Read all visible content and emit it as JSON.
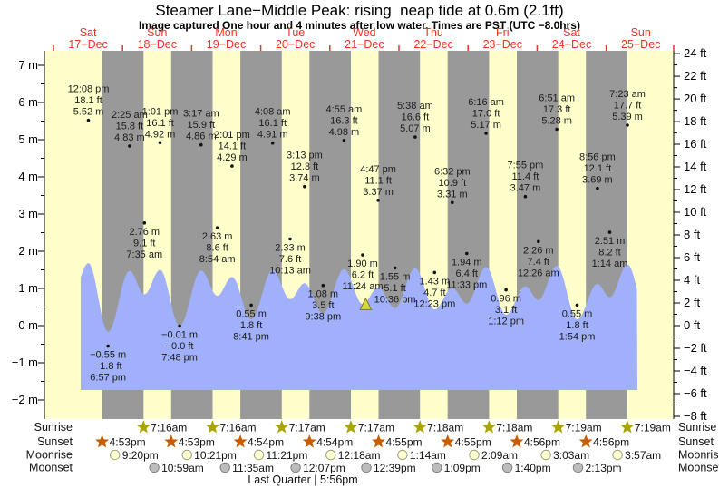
{
  "title": "Steamer Lane−Middle Peak: rising  neap tide at 0.6m (2.1ft)",
  "subtitle": "Image captured One hour and 4 minutes after low water. Times are PST (UTC −8.0hrs)",
  "footer": "Last Quarter | 5:56pm",
  "colors": {
    "day_band": "#ffffcc",
    "night_band": "#999999",
    "tide_fill": "#a0b0fa",
    "red_label": "#ee3322",
    "annotation": "#1b1b1b",
    "axis": "#000000",
    "sunrise_star": "#a8a400",
    "sunset_star": "#c85c00",
    "moonrise_fill": "#ffffd2",
    "moonrise_stroke": "#a0a080",
    "moonset_fill": "#bcbcbc",
    "moonset_stroke": "#808080",
    "marker_fill": "#d8d845",
    "marker_stroke": "#7a7a20"
  },
  "days": [
    {
      "name": "Sat",
      "date": "17−Dec"
    },
    {
      "name": "Sun",
      "date": "18−Dec"
    },
    {
      "name": "Mon",
      "date": "19−Dec"
    },
    {
      "name": "Tue",
      "date": "20−Dec"
    },
    {
      "name": "Wed",
      "date": "21−Dec"
    },
    {
      "name": "Thu",
      "date": "22−Dec"
    },
    {
      "name": "Fri",
      "date": "23−Dec"
    },
    {
      "name": "Sat",
      "date": "24−Dec"
    },
    {
      "name": "Sun",
      "date": "25−Dec"
    }
  ],
  "y_axis_left": {
    "unit": "m",
    "labels": [
      {
        "value": 7,
        "text": "7 m"
      },
      {
        "value": 6,
        "text": "6 m"
      },
      {
        "value": 5,
        "text": "5 m"
      },
      {
        "value": 4,
        "text": "4 m"
      },
      {
        "value": 3,
        "text": "3 m"
      },
      {
        "value": 2,
        "text": "2 m"
      },
      {
        "value": 1,
        "text": "1 m"
      },
      {
        "value": 0,
        "text": "0 m"
      },
      {
        "value": -1,
        "text": "−1 m"
      },
      {
        "value": -2,
        "text": "−2 m"
      }
    ]
  },
  "y_axis_right": {
    "unit": "ft",
    "labels": [
      {
        "value": 24,
        "text": "24 ft"
      },
      {
        "value": 22,
        "text": "22 ft"
      },
      {
        "value": 20,
        "text": "20 ft"
      },
      {
        "value": 18,
        "text": "18 ft"
      },
      {
        "value": 16,
        "text": "16 ft"
      },
      {
        "value": 14,
        "text": "14 ft"
      },
      {
        "value": 12,
        "text": "12 ft"
      },
      {
        "value": 10,
        "text": "10 ft"
      },
      {
        "value": 8,
        "text": "8 ft"
      },
      {
        "value": 6,
        "text": "6 ft"
      },
      {
        "value": 4,
        "text": "4 ft"
      },
      {
        "value": 2,
        "text": "2 ft"
      },
      {
        "value": 0,
        "text": "0 ft"
      },
      {
        "value": -2,
        "text": "−2 ft"
      },
      {
        "value": -4,
        "text": "−4 ft"
      },
      {
        "value": -6,
        "text": "−6 ft"
      },
      {
        "value": -8,
        "text": "−8 ft"
      }
    ]
  },
  "chart_data": {
    "type": "area",
    "description": "Tide curve with labeled high/low tide events; yellow day bands and gray night bands",
    "x_range_days": 9,
    "ylim_m": [
      -2.5,
      7.4
    ],
    "tide_events": [
      {
        "day": 0,
        "hour": 12.133,
        "type": "high",
        "time": "12:08 pm",
        "ft": "18.1 ft",
        "m": "5.52 m",
        "value_m": 5.52
      },
      {
        "day": 0,
        "hour": 18.95,
        "type": "low",
        "time": "6:57 pm",
        "ft": "−1.8 ft",
        "m": "−0.55 m",
        "value_m": -0.55
      },
      {
        "day": 1,
        "hour": 2.417,
        "type": "high",
        "time": "2:25 am",
        "ft": "15.8 ft",
        "m": "4.83 m",
        "value_m": 4.83
      },
      {
        "day": 1,
        "hour": 7.583,
        "type": "low",
        "time": "7:35 am",
        "ft": "9.1 ft",
        "m": "2.76 m",
        "value_m": 2.76
      },
      {
        "day": 1,
        "hour": 13.017,
        "type": "high",
        "time": "1:01 pm",
        "ft": "16.1 ft",
        "m": "4.92 m",
        "value_m": 4.92
      },
      {
        "day": 1,
        "hour": 19.8,
        "type": "low",
        "time": "7:48 pm",
        "ft": "−0.0 ft",
        "m": "−0.01 m",
        "value_m": -0.01
      },
      {
        "day": 2,
        "hour": 3.283,
        "type": "high",
        "time": "3:17 am",
        "ft": "15.9 ft",
        "m": "4.86 m",
        "value_m": 4.86
      },
      {
        "day": 2,
        "hour": 8.9,
        "type": "low",
        "time": "8:54 am",
        "ft": "8.6 ft",
        "m": "2.63 m",
        "value_m": 2.63
      },
      {
        "day": 2,
        "hour": 14.017,
        "type": "high",
        "time": "2:01 pm",
        "ft": "14.1 ft",
        "m": "4.29 m",
        "value_m": 4.29
      },
      {
        "day": 2,
        "hour": 20.683,
        "type": "low",
        "time": "8:41 pm",
        "ft": "1.8 ft",
        "m": "0.55 m",
        "value_m": 0.55
      },
      {
        "day": 3,
        "hour": 4.133,
        "type": "high",
        "time": "4:08 am",
        "ft": "16.1 ft",
        "m": "4.91 m",
        "value_m": 4.91
      },
      {
        "day": 3,
        "hour": 10.217,
        "type": "low",
        "time": "10:13 am",
        "ft": "7.6 ft",
        "m": "2.33 m",
        "value_m": 2.33
      },
      {
        "day": 3,
        "hour": 15.217,
        "type": "high",
        "time": "3:13 pm",
        "ft": "12.3 ft",
        "m": "3.74 m",
        "value_m": 3.74
      },
      {
        "day": 3,
        "hour": 21.633,
        "type": "low",
        "time": "9:38 pm",
        "ft": "3.5 ft",
        "m": "1.08 m",
        "value_m": 1.08
      },
      {
        "day": 4,
        "hour": 4.917,
        "type": "high",
        "time": "4:55 am",
        "ft": "16.3 ft",
        "m": "4.98 m",
        "value_m": 4.98
      },
      {
        "day": 4,
        "hour": 11.4,
        "type": "low",
        "time": "11:24 am",
        "ft": "6.2 ft",
        "m": "1.90 m",
        "value_m": 1.9
      },
      {
        "day": 4,
        "hour": 16.783,
        "type": "high",
        "time": "4:47 pm",
        "ft": "11.1 ft",
        "m": "3.37 m",
        "value_m": 3.37
      },
      {
        "day": 4,
        "hour": 22.6,
        "type": "low",
        "time": "10:36 pm",
        "ft": "5.1 ft",
        "m": "1.55 m",
        "value_m": 1.55
      },
      {
        "day": 5,
        "hour": 5.633,
        "type": "high",
        "time": "5:38 am",
        "ft": "16.6 ft",
        "m": "5.07 m",
        "value_m": 5.07
      },
      {
        "day": 5,
        "hour": 12.383,
        "type": "low",
        "time": "12:23 pm",
        "ft": "4.7 ft",
        "m": "1.43 m",
        "value_m": 1.43
      },
      {
        "day": 5,
        "hour": 18.533,
        "type": "high",
        "time": "6:32 pm",
        "ft": "10.9 ft",
        "m": "3.31 m",
        "value_m": 3.31
      },
      {
        "day": 5,
        "hour": 23.55,
        "type": "low",
        "time": "11:33 pm",
        "ft": "6.4 ft",
        "m": "1.94 m",
        "value_m": 1.94
      },
      {
        "day": 6,
        "hour": 6.267,
        "type": "high",
        "time": "6:16 am",
        "ft": "17.0 ft",
        "m": "5.17 m",
        "value_m": 5.17
      },
      {
        "day": 6,
        "hour": 13.2,
        "type": "low",
        "time": "1:12 pm",
        "ft": "3.1 ft",
        "m": "0.96 m",
        "value_m": 0.96
      },
      {
        "day": 6,
        "hour": 19.917,
        "type": "high",
        "time": "7:55 pm",
        "ft": "11.4 ft",
        "m": "3.47 m",
        "value_m": 3.47
      },
      {
        "day": 7,
        "hour": 0.433,
        "type": "low",
        "time": "12:26 am",
        "ft": "7.4 ft",
        "m": "2.26 m",
        "value_m": 2.26
      },
      {
        "day": 7,
        "hour": 6.85,
        "type": "high",
        "time": "6:51 am",
        "ft": "17.3 ft",
        "m": "5.28 m",
        "value_m": 5.28
      },
      {
        "day": 7,
        "hour": 13.9,
        "type": "low",
        "time": "1:54 pm",
        "ft": "1.8 ft",
        "m": "0.55 m",
        "value_m": 0.55
      },
      {
        "day": 7,
        "hour": 20.933,
        "type": "high",
        "time": "8:56 pm",
        "ft": "12.1 ft",
        "m": "3.69 m",
        "value_m": 3.69
      },
      {
        "day": 8,
        "hour": 1.233,
        "type": "low",
        "time": "1:14 am",
        "ft": "8.2 ft",
        "m": "2.51 m",
        "value_m": 2.51
      },
      {
        "day": 8,
        "hour": 7.383,
        "type": "high",
        "time": "7:23 am",
        "ft": "17.7 ft",
        "m": "5.39 m",
        "value_m": 5.39
      }
    ],
    "curve_padding": [
      {
        "day": 0,
        "hour": 6.2,
        "value_m": 2.5
      },
      {
        "day": 8,
        "hour": 13.75,
        "value_m": 1.3
      }
    ],
    "current_marker": {
      "day": 4,
      "hour": 12.47,
      "level_m": 0.6
    }
  },
  "astro": {
    "rows": [
      {
        "label": "Sunrise",
        "icon": "star",
        "events": [
          {
            "day": 1,
            "hour": 7.267,
            "time": "7:16am"
          },
          {
            "day": 2,
            "hour": 7.267,
            "time": "7:16am"
          },
          {
            "day": 3,
            "hour": 7.283,
            "time": "7:17am"
          },
          {
            "day": 4,
            "hour": 7.283,
            "time": "7:17am"
          },
          {
            "day": 5,
            "hour": 7.3,
            "time": "7:18am"
          },
          {
            "day": 6,
            "hour": 7.3,
            "time": "7:18am"
          },
          {
            "day": 7,
            "hour": 7.317,
            "time": "7:19am"
          },
          {
            "day": 8,
            "hour": 7.317,
            "time": "7:19am"
          }
        ]
      },
      {
        "label": "Sunset",
        "icon": "star",
        "events": [
          {
            "day": 0,
            "hour": 16.883,
            "time": "4:53pm"
          },
          {
            "day": 1,
            "hour": 16.883,
            "time": "4:53pm"
          },
          {
            "day": 2,
            "hour": 16.9,
            "time": "4:54pm"
          },
          {
            "day": 3,
            "hour": 16.9,
            "time": "4:54pm"
          },
          {
            "day": 4,
            "hour": 16.917,
            "time": "4:55pm"
          },
          {
            "day": 5,
            "hour": 16.917,
            "time": "4:55pm"
          },
          {
            "day": 6,
            "hour": 16.933,
            "time": "4:56pm"
          },
          {
            "day": 7,
            "hour": 16.933,
            "time": "4:56pm"
          }
        ]
      },
      {
        "label": "Moonrise",
        "icon": "circle",
        "events": [
          {
            "day": 0,
            "hour": 21.333,
            "time": "9:20pm"
          },
          {
            "day": 1,
            "hour": 22.35,
            "time": "10:21pm"
          },
          {
            "day": 2,
            "hour": 23.35,
            "time": "11:21pm"
          },
          {
            "day": 4,
            "hour": 0.3,
            "time": "12:18am"
          },
          {
            "day": 5,
            "hour": 1.233,
            "time": "1:14am"
          },
          {
            "day": 6,
            "hour": 2.15,
            "time": "2:09am"
          },
          {
            "day": 7,
            "hour": 3.05,
            "time": "3:03am"
          },
          {
            "day": 8,
            "hour": 3.95,
            "time": "3:57am"
          }
        ]
      },
      {
        "label": "Moonset",
        "icon": "circle",
        "events": [
          {
            "day": 1,
            "hour": 10.983,
            "time": "10:59am"
          },
          {
            "day": 2,
            "hour": 11.583,
            "time": "11:35am"
          },
          {
            "day": 3,
            "hour": 12.117,
            "time": "12:07pm"
          },
          {
            "day": 4,
            "hour": 12.65,
            "time": "12:39pm"
          },
          {
            "day": 5,
            "hour": 13.15,
            "time": "1:09pm"
          },
          {
            "day": 6,
            "hour": 13.667,
            "time": "1:40pm"
          },
          {
            "day": 7,
            "hour": 14.217,
            "time": "2:13pm"
          }
        ]
      }
    ]
  }
}
